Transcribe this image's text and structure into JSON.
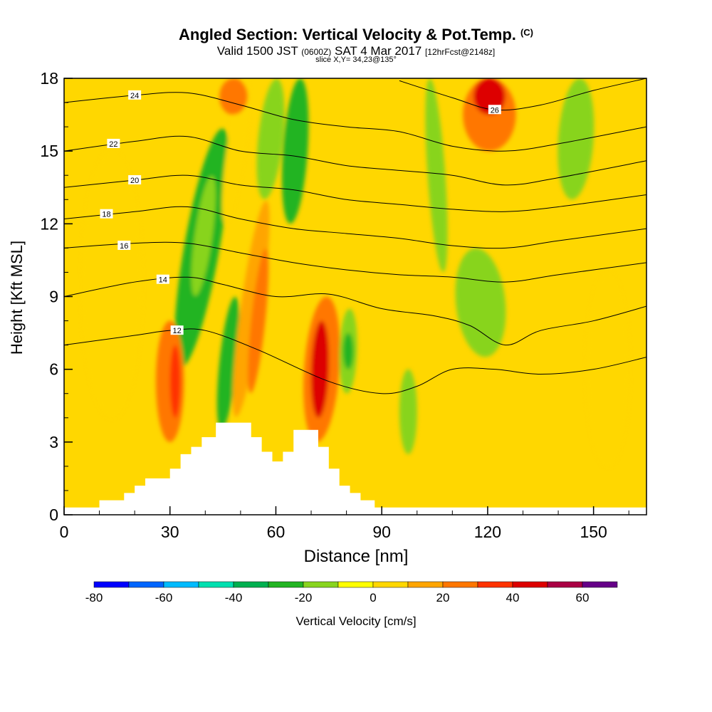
{
  "header": {
    "title": "Angled Section: Vertical Velocity & Pot.Temp.",
    "copyright": "(C)",
    "valid_prefix": "Valid 1500 JST",
    "valid_utc": "(0600Z)",
    "valid_date": "SAT 4 Mar 2017",
    "forecast": "[12hrFcst@2148z]",
    "slice": "slice X,Y= 34,23@135°"
  },
  "chart_data": {
    "type": "heatmap",
    "title": "Angled Section: Vertical Velocity & Pot.Temp.",
    "xlabel": "Distance [nm]",
    "ylabel": "Height [Kft MSL]",
    "xlim": [
      0,
      165
    ],
    "ylim": [
      0,
      18
    ],
    "x_ticks": [
      0,
      30,
      60,
      90,
      120,
      150
    ],
    "y_ticks": [
      0,
      3,
      6,
      9,
      12,
      15,
      18
    ],
    "grid": false,
    "colorbar": {
      "label": "Vertical Velocity [cm/s]",
      "tick_values": [
        -80,
        -60,
        -40,
        -20,
        0,
        20,
        40,
        60
      ],
      "bounds": [
        -80,
        -70,
        -60,
        -50,
        -40,
        -30,
        -20,
        -10,
        0,
        10,
        20,
        30,
        40,
        50,
        60,
        70
      ],
      "colors": [
        "#0000ff",
        "#0066ff",
        "#00bbff",
        "#00e0b0",
        "#00b050",
        "#22b422",
        "#88d41e",
        "#ffff00",
        "#ffd700",
        "#ffa500",
        "#ff7700",
        "#ff3300",
        "#dd0000",
        "#aa0044",
        "#660088"
      ]
    },
    "terrain": [
      [
        0,
        0.3
      ],
      [
        10,
        0.3
      ],
      [
        10,
        0.6
      ],
      [
        17,
        0.6
      ],
      [
        17,
        0.9
      ],
      [
        20,
        0.9
      ],
      [
        20,
        1.2
      ],
      [
        23,
        1.2
      ],
      [
        23,
        1.5
      ],
      [
        30,
        1.5
      ],
      [
        30,
        1.9
      ],
      [
        33,
        1.9
      ],
      [
        33,
        2.5
      ],
      [
        36,
        2.5
      ],
      [
        36,
        2.8
      ],
      [
        39,
        2.8
      ],
      [
        39,
        3.2
      ],
      [
        43,
        3.2
      ],
      [
        43,
        3.8
      ],
      [
        53,
        3.8
      ],
      [
        53,
        3.2
      ],
      [
        56,
        3.2
      ],
      [
        56,
        2.6
      ],
      [
        59,
        2.6
      ],
      [
        59,
        2.2
      ],
      [
        62,
        2.2
      ],
      [
        62,
        2.6
      ],
      [
        65,
        2.6
      ],
      [
        65,
        3.5
      ],
      [
        72,
        3.5
      ],
      [
        72,
        2.8
      ],
      [
        75,
        2.8
      ],
      [
        75,
        1.9
      ],
      [
        78,
        1.9
      ],
      [
        78,
        1.2
      ],
      [
        81,
        1.2
      ],
      [
        81,
        0.9
      ],
      [
        84,
        0.9
      ],
      [
        84,
        0.6
      ],
      [
        88,
        0.6
      ],
      [
        88,
        0.3
      ],
      [
        165,
        0.3
      ]
    ],
    "velocity_cells": [
      {
        "x": [
          34,
          44
        ],
        "y": [
          6,
          16
        ],
        "value": -25,
        "tilt": 5
      },
      {
        "x": [
          37,
          42
        ],
        "y": [
          9,
          14
        ],
        "value": -15,
        "tilt": 4
      },
      {
        "x": [
          44,
          49
        ],
        "y": [
          3.5,
          9
        ],
        "value": -30,
        "tilt": 3
      },
      {
        "x": [
          46,
          51
        ],
        "y": [
          12,
          18
        ],
        "value": 5,
        "tilt": 4
      },
      {
        "x": [
          50,
          56
        ],
        "y": [
          4,
          13
        ],
        "value": 15,
        "tilt": 4
      },
      {
        "x": [
          53,
          57
        ],
        "y": [
          5,
          11
        ],
        "value": 25,
        "tilt": 3
      },
      {
        "x": [
          55,
          62
        ],
        "y": [
          13,
          18
        ],
        "value": -20,
        "tilt": 3
      },
      {
        "x": [
          62,
          69
        ],
        "y": [
          12,
          18
        ],
        "value": -30,
        "tilt": 2
      },
      {
        "x": [
          68,
          78
        ],
        "y": [
          3,
          9
        ],
        "value": 20,
        "tilt": 2
      },
      {
        "x": [
          70,
          75
        ],
        "y": [
          4,
          8
        ],
        "value": 40,
        "tilt": 1
      },
      {
        "x": [
          78,
          83
        ],
        "y": [
          5,
          8.5
        ],
        "value": -20,
        "tilt": 1
      },
      {
        "x": [
          79,
          82
        ],
        "y": [
          6,
          7.5
        ],
        "value": -30,
        "tilt": 0
      },
      {
        "x": [
          44,
          52
        ],
        "y": [
          16.5,
          18
        ],
        "value": 25,
        "tilt": 1
      },
      {
        "x": [
          95,
          100
        ],
        "y": [
          2.5,
          6
        ],
        "value": -15,
        "tilt": 0
      },
      {
        "x": [
          103,
          108
        ],
        "y": [
          10,
          18
        ],
        "value": -15,
        "tilt": -2
      },
      {
        "x": [
          113,
          128
        ],
        "y": [
          15,
          18
        ],
        "value": 25,
        "tilt": 0
      },
      {
        "x": [
          116,
          125
        ],
        "y": [
          16.5,
          18
        ],
        "value": 40,
        "tilt": 0
      },
      {
        "x": [
          111,
          125
        ],
        "y": [
          6.5,
          11
        ],
        "value": -15,
        "tilt": -3
      },
      {
        "x": [
          140,
          150
        ],
        "y": [
          13,
          18
        ],
        "value": -15,
        "tilt": 2
      },
      {
        "x": [
          26,
          34
        ],
        "y": [
          3,
          8
        ],
        "value": 20,
        "tilt": 0
      },
      {
        "x": [
          30,
          33
        ],
        "y": [
          4,
          7
        ],
        "value": 35,
        "tilt": 0
      },
      {
        "x": [
          5,
          22
        ],
        "y": [
          4,
          15
        ],
        "value": 5,
        "tilt": 0
      },
      {
        "x": [
          148,
          160
        ],
        "y": [
          2,
          10
        ],
        "value": 5,
        "tilt": 0
      }
    ],
    "theta_contours": [
      {
        "label": "12",
        "label_at": [
          32,
          7.6
        ],
        "points": [
          [
            0,
            7.0
          ],
          [
            20,
            7.4
          ],
          [
            30,
            7.6
          ],
          [
            40,
            7.6
          ],
          [
            55,
            6.8
          ],
          [
            75,
            5.5
          ],
          [
            90,
            5.0
          ],
          [
            100,
            5.3
          ],
          [
            110,
            6.0
          ],
          [
            122,
            6.0
          ],
          [
            135,
            5.8
          ],
          [
            150,
            6.0
          ],
          [
            165,
            6.5
          ]
        ]
      },
      {
        "label": "14",
        "label_at": [
          28,
          9.7
        ],
        "points": [
          [
            0,
            9.0
          ],
          [
            20,
            9.6
          ],
          [
            35,
            9.8
          ],
          [
            45,
            9.5
          ],
          [
            60,
            9.0
          ],
          [
            75,
            9.1
          ],
          [
            90,
            8.5
          ],
          [
            105,
            8.2
          ],
          [
            115,
            7.8
          ],
          [
            125,
            7.0
          ],
          [
            135,
            7.6
          ],
          [
            150,
            8.0
          ],
          [
            165,
            8.6
          ]
        ]
      },
      {
        "label": "16",
        "label_at": [
          17,
          11.1
        ],
        "points": [
          [
            0,
            11.0
          ],
          [
            20,
            11.2
          ],
          [
            35,
            11.2
          ],
          [
            50,
            10.8
          ],
          [
            65,
            10.4
          ],
          [
            80,
            10.1
          ],
          [
            95,
            9.9
          ],
          [
            110,
            9.8
          ],
          [
            125,
            9.6
          ],
          [
            140,
            9.9
          ],
          [
            165,
            10.4
          ]
        ]
      },
      {
        "label": "18",
        "label_at": [
          12,
          12.4
        ],
        "points": [
          [
            0,
            12.2
          ],
          [
            20,
            12.5
          ],
          [
            35,
            12.7
          ],
          [
            50,
            12.2
          ],
          [
            65,
            11.8
          ],
          [
            80,
            11.6
          ],
          [
            95,
            11.4
          ],
          [
            110,
            11.1
          ],
          [
            125,
            11.0
          ],
          [
            140,
            11.3
          ],
          [
            165,
            11.8
          ]
        ]
      },
      {
        "label": "20",
        "label_at": [
          20,
          13.8
        ],
        "points": [
          [
            0,
            13.5
          ],
          [
            20,
            13.8
          ],
          [
            35,
            14.0
          ],
          [
            50,
            13.6
          ],
          [
            65,
            13.4
          ],
          [
            80,
            13.0
          ],
          [
            95,
            12.8
          ],
          [
            110,
            12.6
          ],
          [
            125,
            12.5
          ],
          [
            140,
            12.7
          ],
          [
            165,
            13.2
          ]
        ]
      },
      {
        "label": "22",
        "label_at": [
          14,
          15.3
        ],
        "points": [
          [
            0,
            15.0
          ],
          [
            20,
            15.4
          ],
          [
            35,
            15.6
          ],
          [
            50,
            15.0
          ],
          [
            65,
            14.8
          ],
          [
            80,
            14.4
          ],
          [
            95,
            14.2
          ],
          [
            110,
            14.0
          ],
          [
            125,
            13.6
          ],
          [
            140,
            13.9
          ],
          [
            165,
            14.6
          ]
        ]
      },
      {
        "label": "24",
        "label_at": [
          20,
          17.3
        ],
        "points": [
          [
            0,
            17.0
          ],
          [
            20,
            17.3
          ],
          [
            35,
            17.4
          ],
          [
            50,
            16.9
          ],
          [
            65,
            16.3
          ],
          [
            80,
            16.0
          ],
          [
            95,
            15.8
          ],
          [
            110,
            15.2
          ],
          [
            125,
            15.0
          ],
          [
            140,
            15.3
          ],
          [
            165,
            16.0
          ]
        ]
      },
      {
        "label": "26",
        "label_at": [
          122,
          16.7
        ],
        "points": [
          [
            95,
            17.9
          ],
          [
            110,
            17.2
          ],
          [
            122,
            16.7
          ],
          [
            135,
            16.9
          ],
          [
            150,
            17.5
          ],
          [
            165,
            18.0
          ]
        ]
      }
    ]
  }
}
